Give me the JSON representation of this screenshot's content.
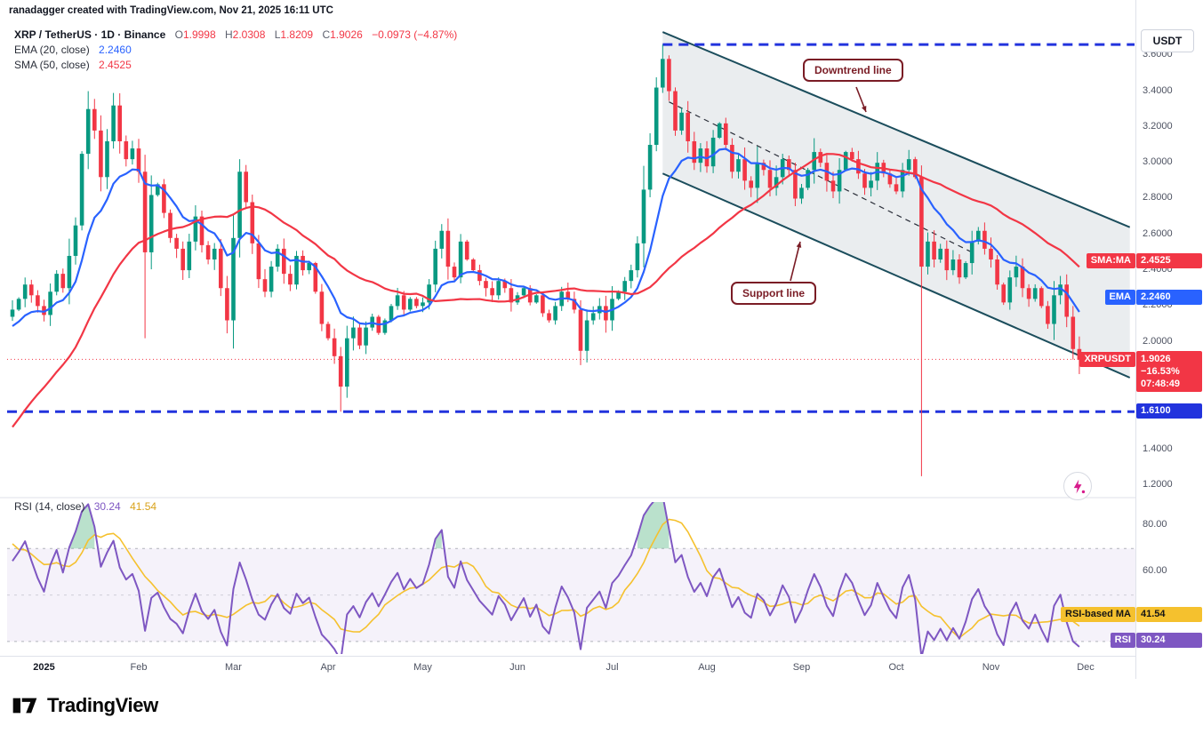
{
  "header": {
    "credit": "ranadagger created with TradingView.com, Nov 21, 2025 16:11 UTC"
  },
  "toolbar": {
    "currency_button": "USDT"
  },
  "legend": {
    "symbol": "XRP / TetherUS · 1D · Binance",
    "ohlc": {
      "o_label": "O",
      "o": "1.9998",
      "h_label": "H",
      "h": "2.0308",
      "l_label": "L",
      "l": "1.8209",
      "c_label": "C",
      "c": "1.9026",
      "change": "−0.0973 (−4.87%)"
    },
    "ema_label": "EMA (20, close)",
    "ema_value": "2.2460",
    "sma_label": "SMA (50, close)",
    "sma_value": "2.4525"
  },
  "rsi_legend": {
    "label": "RSI (14, close)",
    "rsi_value": "30.24",
    "ma_value": "41.54"
  },
  "annotations": {
    "downtrend": "Downtrend line",
    "support": "Support line"
  },
  "badges": {
    "sma": {
      "label": "SMA:MA",
      "value": "2.4525"
    },
    "ema": {
      "label": "EMA",
      "value": "2.2460"
    },
    "price": {
      "label": "XRPUSDT",
      "value": "1.9026",
      "change_pct": "−16.53%",
      "countdown": "07:48:49"
    },
    "level": {
      "value": "1.6100"
    },
    "rsi_ma": {
      "label": "RSI-based MA",
      "value": "41.54"
    },
    "rsi": {
      "label": "RSI",
      "value": "30.24"
    }
  },
  "price_axis": [
    3.6,
    3.4,
    3.2,
    3.0,
    2.8,
    2.6,
    2.4,
    2.2,
    2.0,
    1.4,
    1.2
  ],
  "rsi_axis": [
    80,
    60
  ],
  "time_axis": [
    "2025",
    "Feb",
    "Mar",
    "Apr",
    "May",
    "Jun",
    "Jul",
    "Aug",
    "Sep",
    "Oct",
    "Nov",
    "Dec"
  ],
  "footer": {
    "logo_text": "TradingView"
  },
  "chart_data": [
    {
      "type": "candlestick",
      "title": "XRP/USDT · 1D · Binance with EMA(20) and SMA(50)",
      "note": "closes approximated from chart, each point ≈ 2 daily bars, late Dec 2024 – Nov 21 2025",
      "ylim": [
        1.145,
        3.77
      ],
      "bars_per_point": 2,
      "first_month_index": 5,
      "points_per_month": 15,
      "colors": {
        "up": "#089981",
        "down": "#f23645"
      },
      "pre_history_closes": [
        0.5,
        0.52,
        0.54,
        0.55,
        0.56,
        0.58,
        0.6,
        0.62,
        0.64,
        0.66,
        0.68,
        0.7,
        0.72,
        0.75,
        0.78,
        0.8,
        0.83,
        0.86,
        0.9,
        0.94,
        0.98,
        1.02,
        1.06,
        1.1,
        1.15,
        1.05,
        0.95,
        1.0,
        1.05,
        1.1,
        1.2,
        1.35,
        1.5,
        1.65,
        1.8,
        1.95,
        2.1,
        2.25,
        2.4,
        2.3,
        2.2,
        2.28,
        2.25,
        2.18,
        2.14
      ],
      "closes": [
        2.18,
        2.24,
        2.32,
        2.26,
        2.2,
        2.15,
        2.28,
        2.38,
        2.3,
        2.48,
        2.65,
        3.05,
        3.3,
        3.18,
        2.92,
        3.12,
        3.32,
        3.12,
        3.02,
        3.08,
        2.95,
        2.5,
        2.82,
        2.88,
        2.72,
        2.58,
        2.52,
        2.4,
        2.56,
        2.7,
        2.54,
        2.46,
        2.52,
        2.3,
        2.12,
        2.58,
        2.95,
        2.78,
        2.55,
        2.35,
        2.28,
        2.42,
        2.52,
        2.38,
        2.32,
        2.48,
        2.4,
        2.44,
        2.28,
        2.1,
        2.02,
        1.92,
        1.75,
        2.02,
        2.08,
        1.98,
        2.08,
        2.14,
        2.05,
        2.12,
        2.2,
        2.26,
        2.18,
        2.24,
        2.2,
        2.22,
        2.32,
        2.52,
        2.62,
        2.42,
        2.36,
        2.56,
        2.46,
        2.4,
        2.34,
        2.3,
        2.26,
        2.34,
        2.3,
        2.22,
        2.26,
        2.3,
        2.22,
        2.26,
        2.16,
        2.12,
        2.2,
        2.28,
        2.24,
        2.18,
        1.95,
        2.12,
        2.16,
        2.2,
        2.12,
        2.24,
        2.28,
        2.34,
        2.4,
        2.55,
        2.85,
        3.1,
        3.42,
        3.58,
        3.4,
        3.18,
        3.28,
        3.12,
        3.0,
        3.08,
        2.98,
        3.14,
        3.22,
        3.1,
        2.95,
        3.02,
        2.9,
        2.86,
        3.0,
        2.96,
        2.86,
        2.92,
        3.02,
        2.96,
        2.8,
        2.86,
        2.96,
        3.06,
        3.0,
        2.9,
        2.84,
        2.96,
        3.06,
        3.02,
        2.94,
        2.86,
        2.9,
        3.0,
        2.94,
        2.88,
        2.84,
        2.96,
        3.02,
        2.92,
        2.42,
        2.56,
        2.46,
        2.52,
        2.4,
        2.46,
        2.36,
        2.44,
        2.56,
        2.62,
        2.52,
        2.46,
        2.32,
        2.22,
        2.36,
        2.42,
        2.3,
        2.24,
        2.3,
        2.2,
        2.1,
        2.26,
        2.32,
        2.14,
        1.96,
        1.9
      ],
      "wick_overrides": [
        {
          "i": 12,
          "high": 3.4
        },
        {
          "i": 16,
          "high": 3.39
        },
        {
          "i": 21,
          "low": 2.02
        },
        {
          "i": 36,
          "high": 3.02
        },
        {
          "i": 52,
          "low": 1.61
        },
        {
          "i": 90,
          "low": 1.87
        },
        {
          "i": 103,
          "high": 3.66
        },
        {
          "i": 104,
          "high": 3.6
        },
        {
          "i": 144,
          "low": 1.25
        },
        {
          "i": 169,
          "high": 2.03,
          "low": 1.82
        }
      ],
      "last_bar_ohlc": {
        "open": 1.9998,
        "high": 2.0308,
        "low": 1.8209,
        "close": 1.9026,
        "change": -0.0973,
        "change_pct": -4.87
      },
      "overlays": [
        {
          "name": "EMA (20, close)",
          "kind": "ema",
          "period": 20,
          "effective_points": 11,
          "color": "#2962ff",
          "last_value": 2.246
        },
        {
          "name": "SMA (50, close)",
          "kind": "sma",
          "period": 50,
          "effective_points": 30,
          "color": "#f23645",
          "last_value": 2.4525
        }
      ],
      "levels": [
        {
          "price": 3.66,
          "color": "#2233dd",
          "style": "dashed",
          "width": 3,
          "from_i": 103
        },
        {
          "price": 1.61,
          "color": "#2233dd",
          "style": "dashed",
          "width": 3
        },
        {
          "price": 1.9026,
          "color": "#f23645",
          "style": "dotted",
          "width": 1
        }
      ],
      "channel": {
        "upper": [
          [
            103,
            3.73
          ],
          [
            177,
            2.64
          ]
        ],
        "lower": [
          [
            103,
            2.94
          ],
          [
            177,
            1.8
          ]
        ],
        "mid": [
          [
            104,
            3.34
          ],
          [
            152,
            2.5
          ]
        ],
        "line_color": "#1b4d5c",
        "fill": "rgba(96,118,134,0.13)"
      }
    },
    {
      "type": "line",
      "title": "RSI (14, close) with RSI-based MA (14)",
      "ylim": [
        25,
        90
      ],
      "period": 14,
      "effective_points": 7,
      "ma_period": 14,
      "ma_effective_points": 7,
      "last_rsi": 30.24,
      "last_ma": 41.54,
      "gridlines": [
        70,
        50,
        30
      ],
      "band": [
        30,
        70
      ],
      "colors": {
        "rsi": "#7e57c2",
        "rsi_ma": "#f5c12e",
        "band_fill": "rgba(126,87,194,0.08)",
        "overbought_fill": "rgba(56,168,110,0.35)",
        "grid": "#8a8e99"
      }
    }
  ]
}
